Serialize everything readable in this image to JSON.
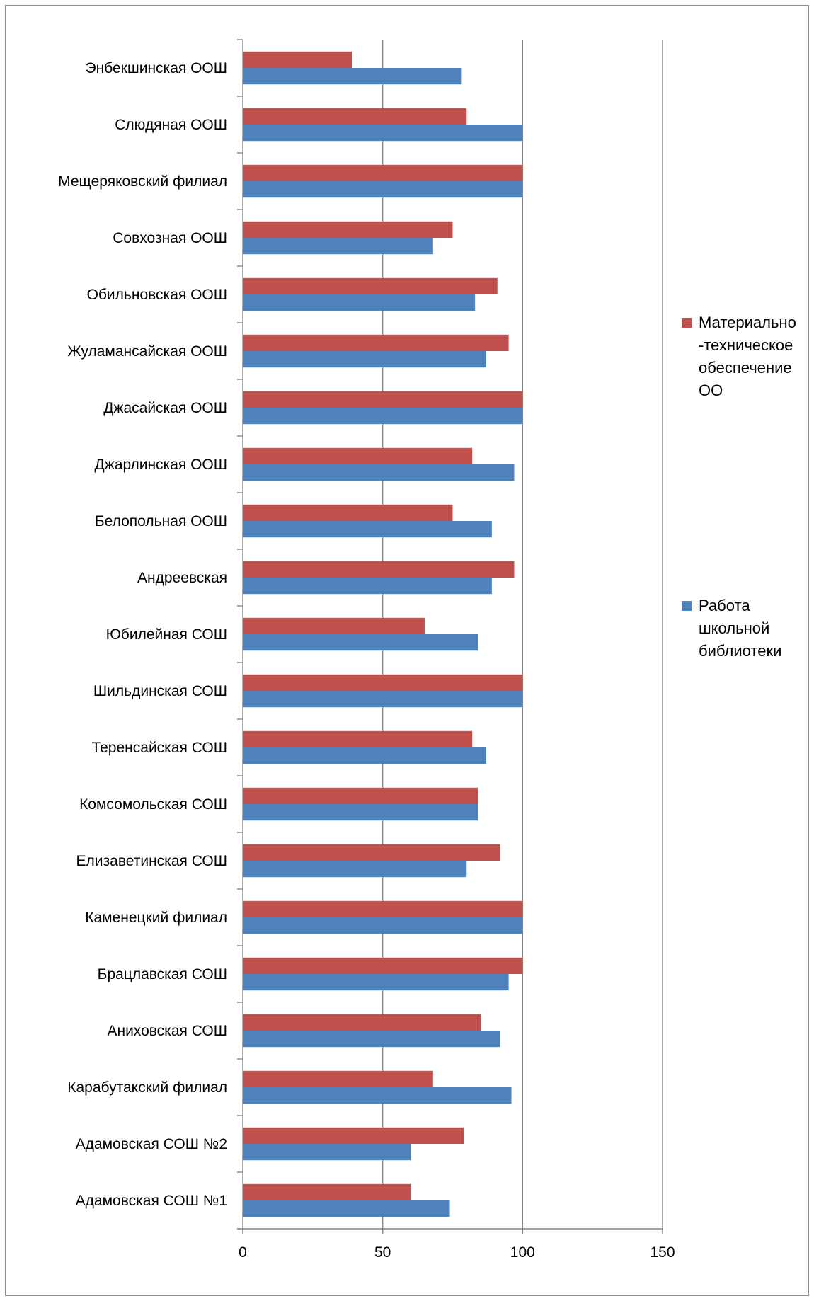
{
  "chart_data": {
    "type": "bar",
    "orientation": "horizontal",
    "title": "",
    "xlabel": "",
    "ylabel": "",
    "xlim": [
      0,
      150
    ],
    "xticks": [
      "0",
      "50",
      "100",
      "150"
    ],
    "grid": true,
    "legend_position": "right",
    "categories": [
      "Энбекшинская ООШ",
      "Слюдяная ООШ",
      "Мещеряковский филиал",
      "Совхозная ООШ",
      "Обильновская ООШ",
      "Жуламансайская ООШ",
      "Джасайская ООШ",
      "Джарлинская ООШ",
      "Белопольная ООШ",
      "Андреевская",
      "Юбилейная СОШ",
      "Шильдинская СОШ",
      "Теренсайская СОШ",
      "Комсомольская СОШ",
      "Елизаветинская СОШ",
      "Каменецкий филиал",
      "Брацлавская СОШ",
      "Аниховская СОШ",
      "Карабутакский филиал",
      "Адамовская СОШ №2",
      "Адамовская СОШ №1"
    ],
    "series": [
      {
        "name": "Материально -техническое обеспечение ОО",
        "legend_lines": [
          "Материально",
          "-техническое",
          "обеспечение",
          "ОО"
        ],
        "color": "#c0504d",
        "values": [
          39,
          80,
          100,
          75,
          91,
          95,
          100,
          82,
          75,
          97,
          65,
          100,
          82,
          84,
          92,
          100,
          100,
          85,
          68,
          79,
          60
        ]
      },
      {
        "name": "Работа школьной библиотеки",
        "legend_lines": [
          "Работа",
          "школьной",
          "библиотеки"
        ],
        "color": "#4f81bd",
        "values": [
          78,
          100,
          100,
          68,
          83,
          87,
          100,
          97,
          89,
          89,
          84,
          100,
          87,
          84,
          80,
          100,
          95,
          92,
          96,
          60,
          74
        ]
      }
    ],
    "axis_color": "#868686",
    "gridline_color": "#868686"
  }
}
